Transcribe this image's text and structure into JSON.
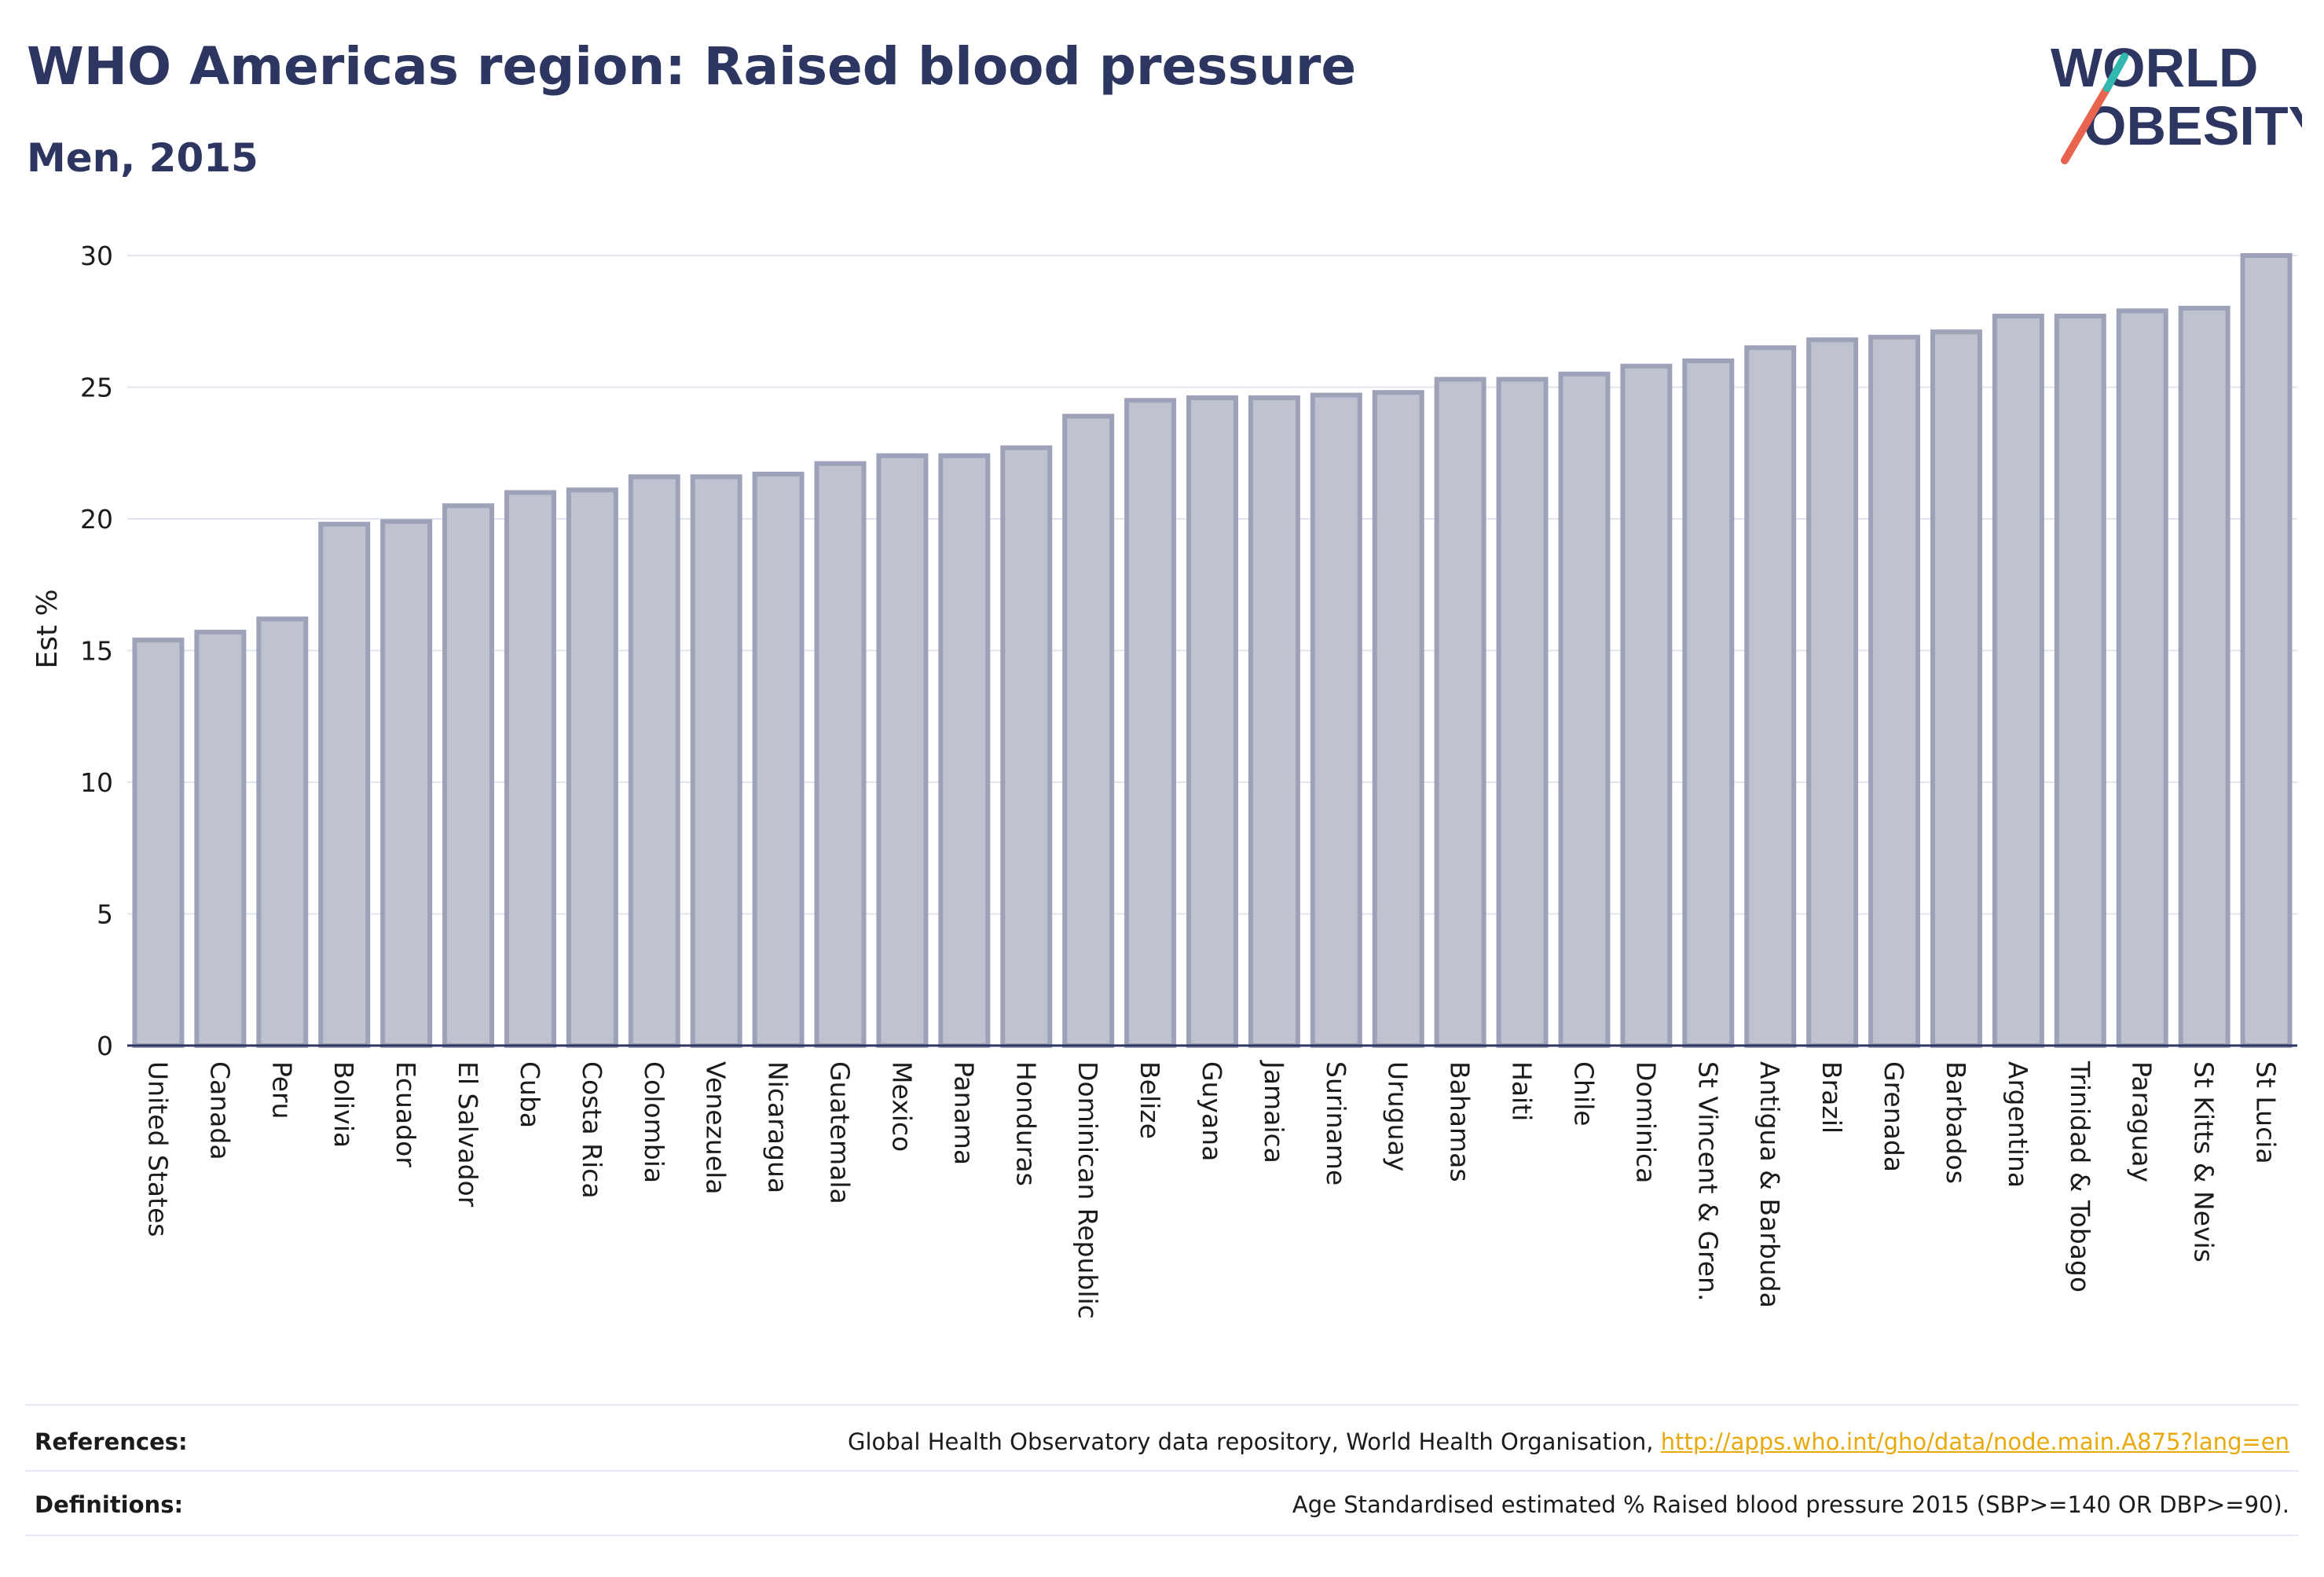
{
  "header": {
    "title": "WHO Americas region: Raised blood pressure",
    "subtitle": "Men, 2015"
  },
  "logo": {
    "line1": "WORLD",
    "line2": "OBESITY",
    "text_color": "#2d3561",
    "slash_colors": [
      "#e8644f",
      "#33b8b0"
    ]
  },
  "colors": {
    "bar_fill": "#bfc2cf",
    "bar_stroke": "#9ea2b8",
    "grid": "#e3e5ee",
    "axis": "#2d3561"
  },
  "chart_data": {
    "type": "bar",
    "title": "WHO Americas region: Raised blood pressure",
    "subtitle": "Men, 2015",
    "xlabel": "",
    "ylabel": "Est %",
    "ylim": [
      0,
      30
    ],
    "yticks": [
      0,
      5,
      10,
      15,
      20,
      25,
      30
    ],
    "grid": true,
    "categories": [
      "United States",
      "Canada",
      "Peru",
      "Bolivia",
      "Ecuador",
      "El Salvador",
      "Cuba",
      "Costa Rica",
      "Colombia",
      "Venezuela",
      "Nicaragua",
      "Guatemala",
      "Mexico",
      "Panama",
      "Honduras",
      "Dominican Republic",
      "Belize",
      "Guyana",
      "Jamaica",
      "Suriname",
      "Uruguay",
      "Bahamas",
      "Haiti",
      "Chile",
      "Dominica",
      "St Vincent & Gren.",
      "Antigua & Barbuda",
      "Brazil",
      "Grenada",
      "Barbados",
      "Argentina",
      "Trinidad & Tobago",
      "Paraguay",
      "St Kitts & Nevis",
      "St Lucia"
    ],
    "values": [
      15.4,
      15.7,
      16.2,
      19.8,
      19.9,
      20.5,
      21.0,
      21.1,
      21.6,
      21.6,
      21.7,
      22.1,
      22.4,
      22.4,
      22.7,
      23.9,
      24.5,
      24.6,
      24.6,
      24.7,
      24.8,
      25.3,
      25.3,
      25.5,
      25.8,
      26.0,
      26.5,
      26.8,
      26.9,
      27.1,
      27.7,
      27.7,
      27.9,
      28.0,
      30.0
    ]
  },
  "footer": {
    "references_label": "References:",
    "references_text": "Global Health Observatory data repository, World Health Organisation, ",
    "references_link": "http://apps.who.int/gho/data/node.main.A875?lang=en",
    "definitions_label": "Definitions:",
    "definitions_text": "Age Standardised estimated % Raised blood pressure 2015 (SBP>=140 OR DBP>=90)."
  }
}
